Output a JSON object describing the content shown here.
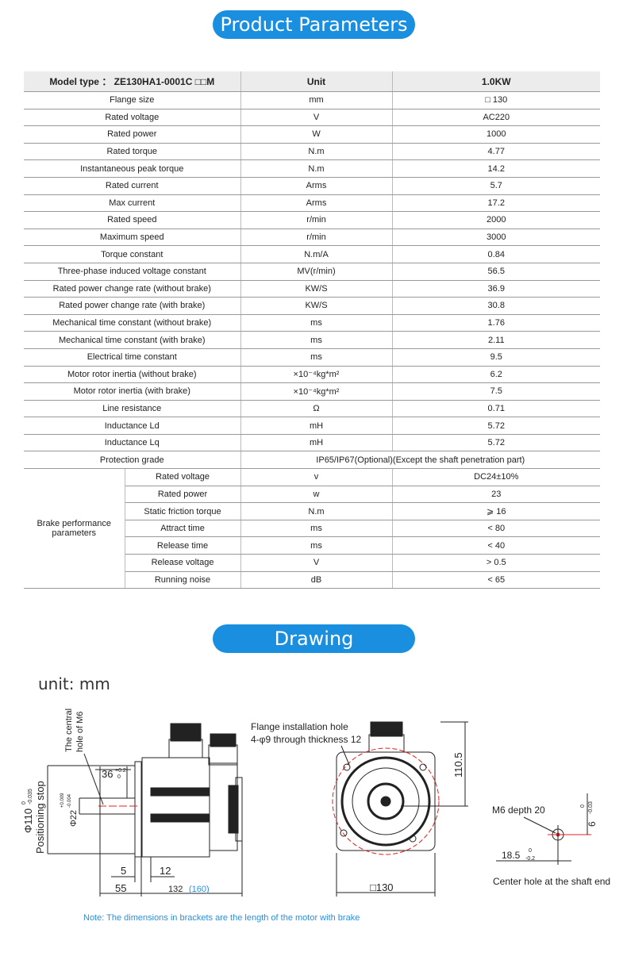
{
  "sections": {
    "params_title": "Product Parameters",
    "drawing_title": "Drawing"
  },
  "table": {
    "header": [
      "Model type ： ZE130HA1-0001C □□M",
      "Unit",
      "1.0KW"
    ],
    "rows": [
      [
        "Flange size",
        "mm",
        "□ 130"
      ],
      [
        "Rated voltage",
        "V",
        "AC220"
      ],
      [
        "Rated power",
        "W",
        "1000"
      ],
      [
        "Rated torque",
        "N.m",
        "4.77"
      ],
      [
        "Instantaneous peak torque",
        "N.m",
        "14.2"
      ],
      [
        "Rated current",
        "Arms",
        "5.7"
      ],
      [
        "Max current",
        "Arms",
        "17.2"
      ],
      [
        "Rated speed",
        "r/min",
        "2000"
      ],
      [
        "Maximum speed",
        "r/min",
        "3000"
      ],
      [
        "Torque constant",
        "N.m/A",
        "0.84"
      ],
      [
        "Three-phase induced voltage constant",
        "MV(r/min)",
        "56.5"
      ],
      [
        "Rated power change rate (without brake)",
        "KW/S",
        "36.9"
      ],
      [
        "Rated power change rate (with brake)",
        "KW/S",
        "30.8"
      ],
      [
        "Mechanical time constant (without brake)",
        "ms",
        "1.76"
      ],
      [
        "Mechanical time constant (with brake)",
        "ms",
        "2.11"
      ],
      [
        "Electrical time constant",
        "ms",
        "9.5"
      ],
      [
        "Motor rotor inertia (without brake)",
        "×10⁻⁴kg*m²",
        "6.2"
      ],
      [
        "Motor rotor inertia (with brake)",
        "×10⁻⁴kg*m²",
        "7.5"
      ],
      [
        "Line resistance",
        "Ω",
        "0.71"
      ],
      [
        "Inductance Ld",
        "mH",
        "5.72"
      ],
      [
        "Inductance Lq",
        "mH",
        "5.72"
      ]
    ],
    "protection": {
      "label": "Protection grade",
      "value": "IP65/IP67(Optional)(Except the shaft penetration part)"
    },
    "brake": {
      "label": "Brake performance parameters",
      "rows": [
        [
          "Rated voltage",
          "v",
          "DC24±10%"
        ],
        [
          "Rated power",
          "w",
          "23"
        ],
        [
          "Static friction torque",
          "N.m",
          "⩾ 16"
        ],
        [
          "Attract time",
          "ms",
          "< 80"
        ],
        [
          "Release time",
          "ms",
          "< 40"
        ],
        [
          "Release voltage",
          "V",
          "> 0.5"
        ],
        [
          "Running noise",
          "dB",
          "< 65"
        ]
      ]
    }
  },
  "drawing": {
    "unit": "unit: mm",
    "side": {
      "central_hole_1": "The central",
      "central_hole_2": "hole of M6",
      "positioning": "Positioning stop",
      "dia110": "Φ110",
      "dia110_tol_top": "0",
      "dia110_tol_bot": "-0.035",
      "dia22": "Φ22",
      "dia22_tol_top": "+0.009",
      "dia22_tol_bot": "-0.004",
      "len36": "36",
      "len36_tol_top": "+0.2",
      "len36_tol_bot": "0",
      "d5": "5",
      "d12": "12",
      "d55": "55",
      "d132": "132",
      "d160": "(160)"
    },
    "front": {
      "flange_1": "Flange installation hole",
      "flange_2": "4-φ9 through thickness 12",
      "d110_5": "110.5",
      "d130": "□130"
    },
    "shaft": {
      "m6": "M6 depth 20",
      "d6": "6",
      "d6_tol_top": "0",
      "d6_tol_bot": "-0.03",
      "d18_5": "18.5",
      "d18_5_tol_top": "0",
      "d18_5_tol_bot": "-0.2",
      "caption": "Center hole at the shaft end"
    },
    "note": "Note: The dimensions in brackets are the length of the motor with brake",
    "colors": {
      "accent": "#1a8fe0",
      "centerline": "#e02020",
      "note": "#2a8fdc"
    }
  }
}
